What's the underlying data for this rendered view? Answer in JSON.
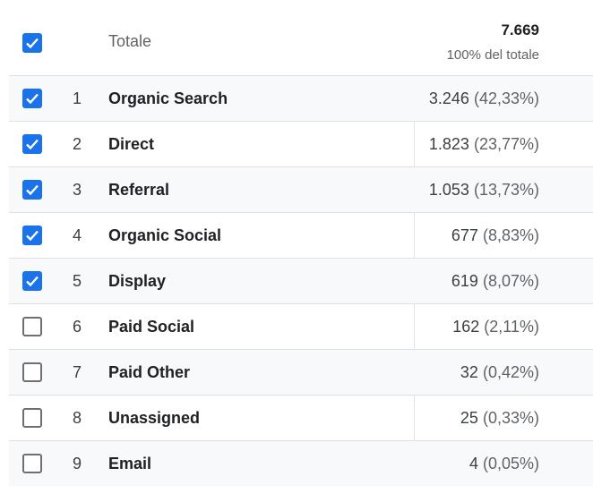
{
  "header": {
    "label": "Totale",
    "total": "7.669",
    "total_sub": "100% del totale",
    "checked": true
  },
  "rows": [
    {
      "rank": "1",
      "label": "Organic Search",
      "value": "3.246",
      "pct": "(42,33%)",
      "checked": true
    },
    {
      "rank": "2",
      "label": "Direct",
      "value": "1.823",
      "pct": "(23,77%)",
      "checked": true
    },
    {
      "rank": "3",
      "label": "Referral",
      "value": "1.053",
      "pct": "(13,73%)",
      "checked": true
    },
    {
      "rank": "4",
      "label": "Organic Social",
      "value": "677",
      "pct": "(8,83%)",
      "checked": true
    },
    {
      "rank": "5",
      "label": "Display",
      "value": "619",
      "pct": "(8,07%)",
      "checked": true
    },
    {
      "rank": "6",
      "label": "Paid Social",
      "value": "162",
      "pct": "(2,11%)",
      "checked": false
    },
    {
      "rank": "7",
      "label": "Paid Other",
      "value": "32",
      "pct": "(0,42%)",
      "checked": false
    },
    {
      "rank": "8",
      "label": "Unassigned",
      "value": "25",
      "pct": "(0,33%)",
      "checked": false
    },
    {
      "rank": "9",
      "label": "Email",
      "value": "4",
      "pct": "(0,05%)",
      "checked": false
    }
  ],
  "colors": {
    "checkbox_checked": "#1a73e8",
    "checkbox_unchecked_border": "#6f6f6f",
    "alt_row_bg": "#f8f9fa"
  },
  "icons": {
    "checked": "checkmark-icon"
  }
}
